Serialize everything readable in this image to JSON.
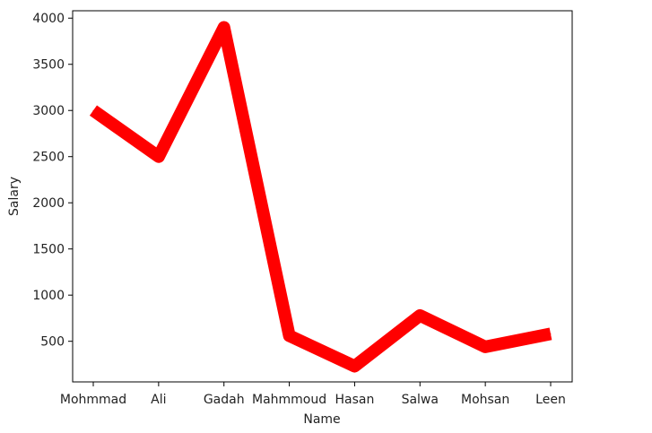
{
  "chart_data": {
    "type": "line",
    "title": "",
    "xlabel": "Name",
    "ylabel": "Salary",
    "categories": [
      "Mohmmad",
      "Ali",
      "Gadah",
      "Mahmmoud",
      "Hasan",
      "Salwa",
      "Mohsan",
      "Leen"
    ],
    "series": [
      {
        "values": [
          3000,
          2500,
          3900,
          560,
          230,
          780,
          440,
          580
        ]
      }
    ],
    "yticks": [
      500,
      1000,
      1500,
      2000,
      2500,
      3000,
      3500,
      4000
    ],
    "ylim": [
      60,
      4080
    ],
    "grid": false,
    "legend": false,
    "line_color": "#ff0000"
  }
}
